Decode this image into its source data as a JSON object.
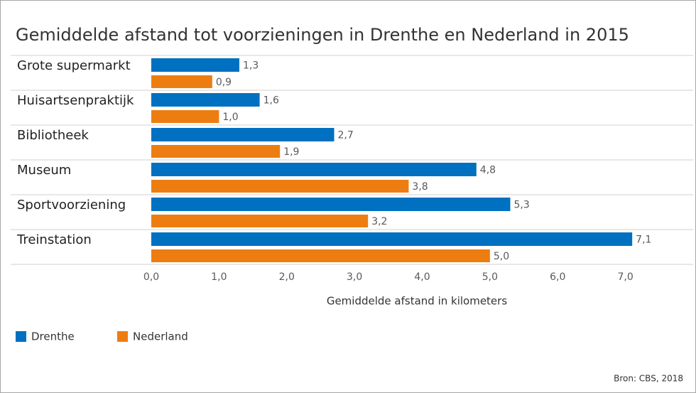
{
  "chart_data": {
    "type": "hbar",
    "title": "Gemiddelde afstand tot voorzieningen in Drenthe en Nederland in 2015",
    "categories": [
      "Grote supermarkt",
      "Huisartsenpraktijk",
      "Bibliotheek",
      "Museum",
      "Sportvoorziening",
      "Treinstation"
    ],
    "series": [
      {
        "name": "Drenthe",
        "color": "#0070c0",
        "values": [
          1.3,
          1.6,
          2.7,
          4.8,
          5.3,
          7.1
        ],
        "value_labels": [
          "1,3",
          "1,6",
          "2,7",
          "4,8",
          "5,3",
          "7,1"
        ]
      },
      {
        "name": "Nederland",
        "color": "#ed7d11",
        "values": [
          0.9,
          1.0,
          1.9,
          3.8,
          3.2,
          5.0
        ],
        "value_labels": [
          "0,9",
          "1,0",
          "1,9",
          "3,8",
          "3,2",
          "5,0"
        ]
      }
    ],
    "xlabel": "Gemiddelde afstand in kilometers",
    "xlim": [
      0,
      8
    ],
    "xticks": [
      {
        "value": 0,
        "label": "0,0"
      },
      {
        "value": 1,
        "label": "1,0"
      },
      {
        "value": 2,
        "label": "2,0"
      },
      {
        "value": 3,
        "label": "3,0"
      },
      {
        "value": 4,
        "label": "4,0"
      },
      {
        "value": 5,
        "label": "5,0"
      },
      {
        "value": 6,
        "label": "6,0"
      },
      {
        "value": 7,
        "label": "7,0"
      }
    ],
    "legend": "bottom-left",
    "source": "Bron: CBS, 2018"
  }
}
